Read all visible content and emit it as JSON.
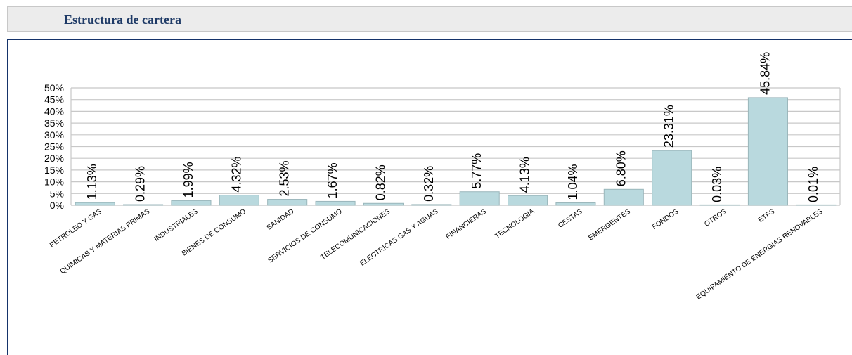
{
  "header": {
    "title": "Estructura de cartera"
  },
  "chart_data": {
    "type": "bar",
    "categories": [
      "PETROLEO Y GAS",
      "QUIMICAS Y MATERIAS PRIMAS",
      "INDUSTRIALES",
      "BIENES DE CONSUMO",
      "SANIDAD",
      "SERVICIOS DE CONSUMO",
      "TELECOMUNICACIONES",
      "ELECTRICAS GAS Y AGUAS",
      "FINANCIERAS",
      "TECNOLOGIA",
      "CESTAS",
      "EMERGENTES",
      "FONDOS",
      "OTROS",
      "ETFS",
      "EQUIPAMIENTO DE ENERGIAS RENOVABLES"
    ],
    "values": [
      1.13,
      0.29,
      1.99,
      4.32,
      2.53,
      1.67,
      0.82,
      0.32,
      5.77,
      4.13,
      1.04,
      6.8,
      23.31,
      0.03,
      45.84,
      0.01
    ],
    "data_labels": [
      "1.13%",
      "0.29%",
      "1.99%",
      "4.32%",
      "2.53%",
      "1.67%",
      "0.82%",
      "0.32%",
      "5.77%",
      "4.13%",
      "1.04%",
      "6.80%",
      "23.31%",
      "0.03%",
      "45.84%",
      "0.01%"
    ],
    "y_ticks": [
      "0%",
      "5%",
      "10%",
      "15%",
      "20%",
      "25%",
      "30%",
      "35%",
      "40%",
      "45%",
      "50%"
    ],
    "ylim": [
      0,
      50
    ],
    "grid": true,
    "legend": "none",
    "colors": {
      "bar": "#b9d9de",
      "bar_stroke": "#9ab6bb",
      "grid": "#c8c8c8",
      "header_text": "#1e3a66",
      "panel_border": "#15336a"
    }
  }
}
